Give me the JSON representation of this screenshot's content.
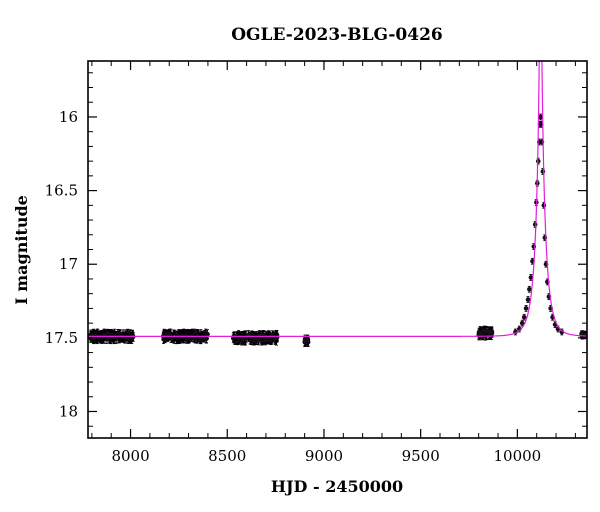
{
  "chart_data": {
    "type": "scatter",
    "title": "OGLE-2023-BLG-0426",
    "xlabel": "HJD - 2450000",
    "ylabel": "I magnitude",
    "xlim": [
      7780,
      10360
    ],
    "ylim": [
      18.18,
      15.62
    ],
    "y_inverted": true,
    "grid": false,
    "xticks": [
      "8000",
      "8500",
      "9000",
      "9500",
      "10000"
    ],
    "yticks": [
      "16",
      "16.5",
      "17",
      "17.5",
      "18"
    ],
    "series": [
      {
        "kind": "points-with-errorbars",
        "color": "#000000",
        "seasons": [
          {
            "x_start": 7790,
            "x_end": 8020,
            "y": 17.49,
            "scatter": 0.02,
            "err": 0.03
          },
          {
            "x_start": 8170,
            "x_end": 8400,
            "y": 17.49,
            "scatter": 0.02,
            "err": 0.03
          },
          {
            "x_start": 8530,
            "x_end": 8760,
            "y": 17.5,
            "scatter": 0.02,
            "err": 0.03
          },
          {
            "x_start": 8900,
            "x_end": 8920,
            "y": 17.52,
            "scatter": 0.01,
            "err": 0.03
          },
          {
            "x_start": 9800,
            "x_end": 9870,
            "y": 17.47,
            "scatter": 0.02,
            "err": 0.03
          },
          {
            "x_start": 10330,
            "x_end": 10355,
            "y": 17.48,
            "scatter": 0.01,
            "err": 0.02
          }
        ],
        "event_points": [
          [
            9990,
            17.46
          ],
          [
            10010,
            17.44
          ],
          [
            10025,
            17.4
          ],
          [
            10035,
            17.36
          ],
          [
            10045,
            17.3
          ],
          [
            10055,
            17.24
          ],
          [
            10062,
            17.17
          ],
          [
            10070,
            17.09
          ],
          [
            10078,
            16.98
          ],
          [
            10085,
            16.88
          ],
          [
            10092,
            16.73
          ],
          [
            10098,
            16.58
          ],
          [
            10103,
            16.45
          ],
          [
            10108,
            16.3
          ],
          [
            10113,
            16.17
          ],
          [
            10117,
            16.05
          ],
          [
            10120,
            16.0
          ],
          [
            10123,
            16.05
          ],
          [
            10127,
            16.17
          ],
          [
            10132,
            16.37
          ],
          [
            10137,
            16.6
          ],
          [
            10142,
            16.82
          ],
          [
            10148,
            17.0
          ],
          [
            10155,
            17.12
          ],
          [
            10163,
            17.22
          ],
          [
            10172,
            17.3
          ],
          [
            10182,
            17.36
          ],
          [
            10195,
            17.41
          ],
          [
            10210,
            17.44
          ],
          [
            10230,
            17.46
          ]
        ]
      },
      {
        "kind": "model",
        "color": "#e020d8",
        "baseline": 17.49,
        "t0": 10120,
        "u0": 0.078,
        "tE": 48
      }
    ]
  }
}
